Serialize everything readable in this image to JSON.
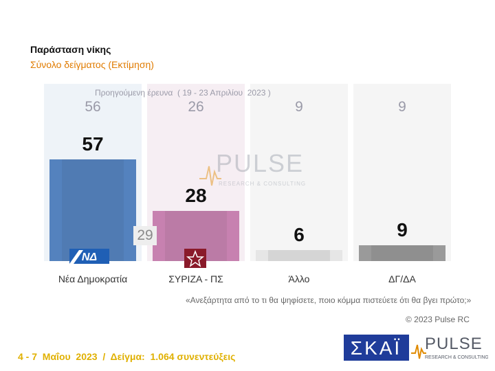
{
  "chart_data": {
    "type": "bar",
    "title": "Παράσταση νίκης",
    "subtitle": "Σύνολο δείγματος   (Εκτίμηση)",
    "categories": [
      "Νέα Δημοκρατία",
      "ΣΥΡΙΖΑ - ΠΣ",
      "Άλλο",
      "ΔΓ/ΔΑ"
    ],
    "series": [
      {
        "name": "Προηγούμενη έρευνα ( 19 - 23 Απριλίου 2023 )",
        "values": [
          56,
          26,
          9,
          9
        ]
      },
      {
        "values": [
          57,
          28,
          6,
          9
        ]
      }
    ],
    "difference_label": "29",
    "ylim": [
      0,
      100
    ],
    "colors": [
      "#3a6fb4",
      "#bf6fa5",
      "#e6e6e6",
      "#9a9a9a"
    ],
    "xlabel": "",
    "ylabel": ""
  },
  "prev_caption": "Προηγούμενη έρευνα  ( 19 - 23 Απριλίου  2023 )",
  "question": "«Ανεξάρτητα από το τι θα ψηφίσετε, ποιο κόμμα πιστεύετε ότι θα βγει πρώτο;»",
  "copyright": "© 2023 Pulse RC",
  "footer": "4 - 7  Μαΐου  2023  /  Δείγμα:  1.064 συνεντεύξεις",
  "logos": {
    "skai": "ΣΚΑΪ",
    "pulse": "PULSE",
    "pulse_tagline": "RESEARCH & CONSULTING",
    "nd": "ΝΔ"
  },
  "icons": [
    "nd-logo-icon",
    "syriza-logo-icon",
    "pulse-wave-icon"
  ]
}
